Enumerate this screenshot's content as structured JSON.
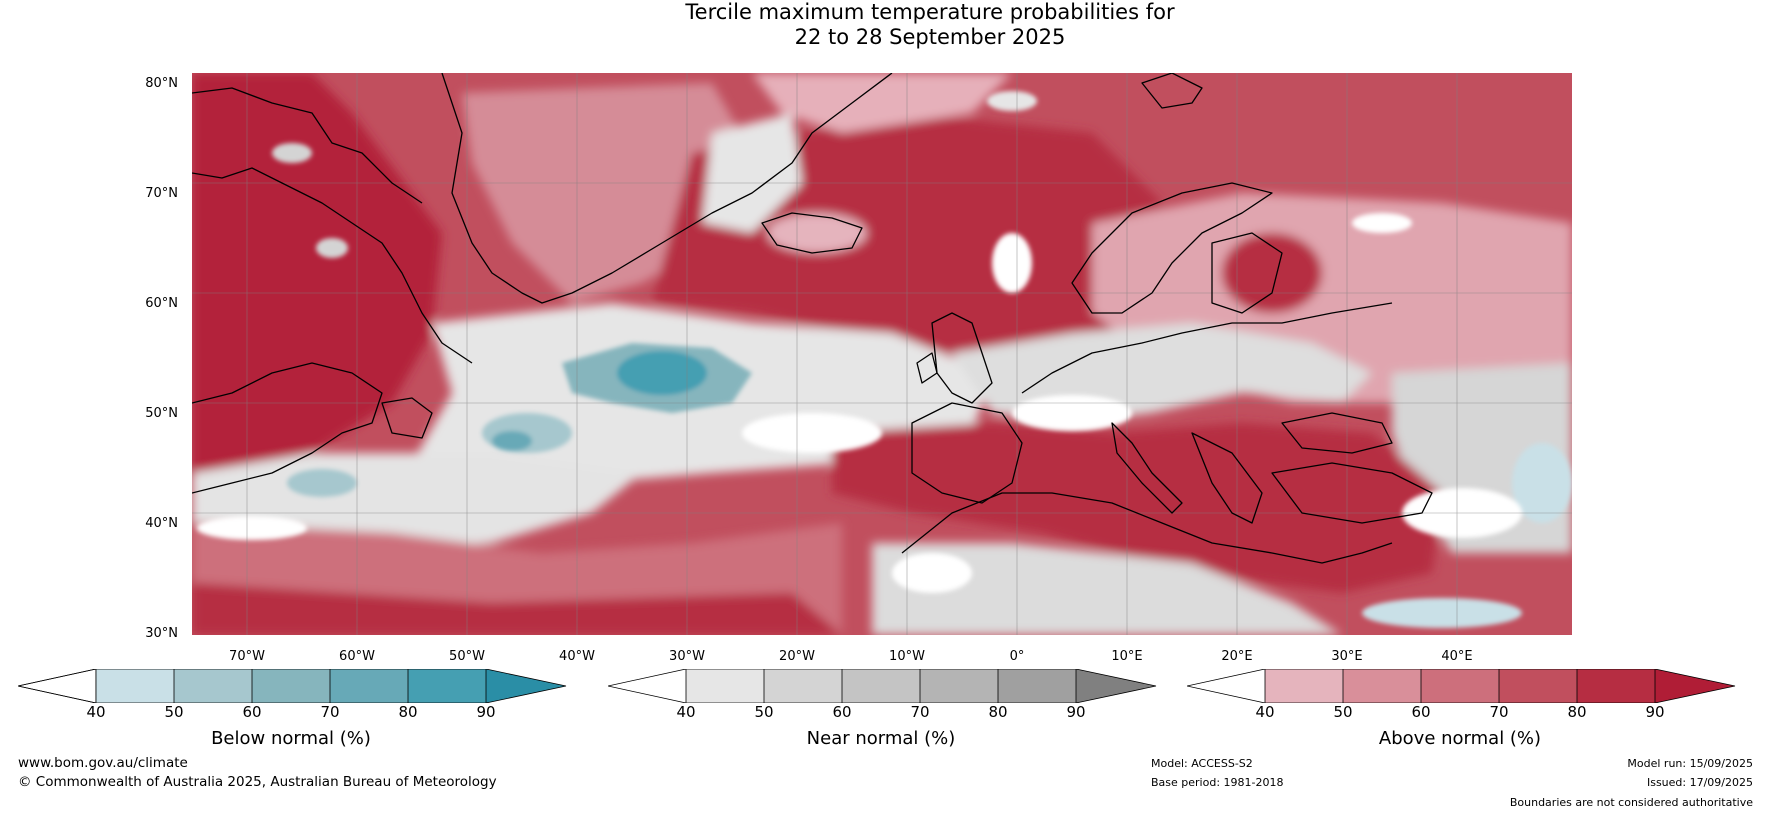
{
  "title": {
    "line1": "Tercile maximum temperature probabilities for",
    "line2": "22 to 28 September 2025"
  },
  "map": {
    "lat_labels": [
      "80°N",
      "70°N",
      "60°N",
      "50°N",
      "40°N",
      "30°N"
    ],
    "lon_labels": [
      "70°W",
      "60°W",
      "50°W",
      "40°W",
      "30°W",
      "20°W",
      "10°W",
      "0°",
      "10°E",
      "20°E",
      "30°E",
      "40°E"
    ]
  },
  "colorbars": [
    {
      "title": "Below normal (%)",
      "ticks": [
        "40",
        "50",
        "60",
        "70",
        "80",
        "90"
      ],
      "colors": [
        "#ffffff",
        "#c9e0e7",
        "#a6c7ce",
        "#86b5bd",
        "#67a9b7",
        "#459fb2",
        "#2a8ea6"
      ]
    },
    {
      "title": "Near normal (%)",
      "ticks": [
        "40",
        "50",
        "60",
        "70",
        "80",
        "90"
      ],
      "colors": [
        "#ffffff",
        "#e6e6e6",
        "#d4d4d4",
        "#c4c4c4",
        "#b4b4b4",
        "#a0a0a0",
        "#808080"
      ]
    },
    {
      "title": "Above normal (%)",
      "ticks": [
        "40",
        "50",
        "60",
        "70",
        "80",
        "90"
      ],
      "colors": [
        "#ffffff",
        "#e5b4bd",
        "#d98f9a",
        "#cd6f7c",
        "#c14f5e",
        "#b62d42",
        "#b01d36"
      ]
    }
  ],
  "footer": {
    "website": "www.bom.gov.au/climate",
    "copyright": "© Commonwealth of Australia 2025, Australian Bureau of Meteorology",
    "model": "Model: ACCESS-S2",
    "base_period": "Base period: 1981-2018",
    "model_run": "Model run: 15/09/2025",
    "issued": "Issued: 17/09/2025",
    "disclaimer": "Boundaries are not considered authoritative"
  }
}
